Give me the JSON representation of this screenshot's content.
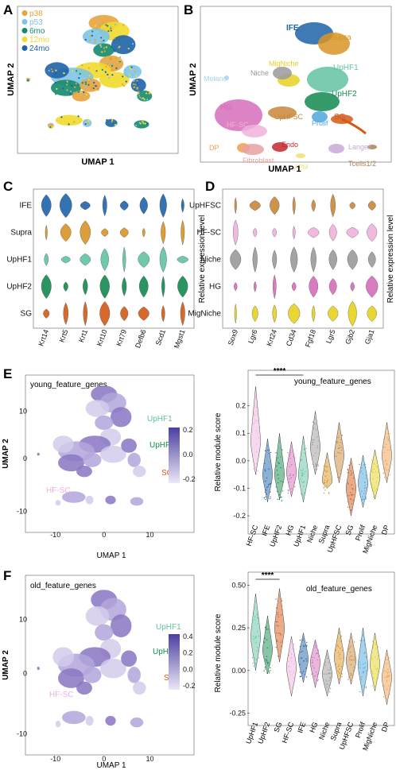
{
  "panels": {
    "a": {
      "letter": "A",
      "legend": [
        "p38",
        "p53",
        "6mo",
        "12mo",
        "24mo"
      ],
      "legend_colors": [
        "#e8a33a",
        "#7ec4e6",
        "#148a6e",
        "#f2da2e",
        "#1e63a8"
      ],
      "xlabel": "UMAP 1",
      "ylabel": "UMAP 2"
    },
    "b": {
      "letter": "B",
      "xlabel": "UMAP 1",
      "ylabel": "UMAP 2",
      "clusters": [
        {
          "label": "IFE",
          "color": "#1e63a8"
        },
        {
          "label": "Supra",
          "color": "#d89424"
        },
        {
          "label": "MigNiche",
          "color": "#e6d21f"
        },
        {
          "label": "UpHF1",
          "color": "#61c3a2"
        },
        {
          "label": "Niche",
          "color": "#9a9a9a"
        },
        {
          "label": "Melano",
          "color": "#a7d2ef"
        },
        {
          "label": "UpHF2",
          "color": "#138a50"
        },
        {
          "label": "HG",
          "color": "#d66dbb"
        },
        {
          "label": "UpHFSC",
          "color": "#c8873a"
        },
        {
          "label": "SG",
          "color": "#d25a16"
        },
        {
          "label": "HF-SC",
          "color": "#f0b1dc"
        },
        {
          "label": "Prolif",
          "color": "#4fa6dc"
        },
        {
          "label": "DP",
          "color": "#efa050"
        },
        {
          "label": "Endo",
          "color": "#c2272d"
        },
        {
          "label": "Langer",
          "color": "#c9a8d8"
        },
        {
          "label": "Fibroblast",
          "color": "#e7a1a0"
        },
        {
          "label": "APM",
          "color": "#f0e070"
        },
        {
          "label": "Tcells1/2",
          "color": "#a88458"
        }
      ]
    },
    "c": {
      "letter": "C",
      "rows": [
        "IFE",
        "Supra",
        "UpHF1",
        "UpHF2",
        "SG"
      ],
      "row_colors": [
        "#1e63a8",
        "#d89424",
        "#61c3a2",
        "#138a50",
        "#d25a16"
      ],
      "genes": [
        "Krt14",
        "Krt5",
        "Krt1",
        "Krt10",
        "Krt79",
        "Defb6",
        "Scd1",
        "Mgst1"
      ],
      "side_label": "Relative expression level"
    },
    "d": {
      "letter": "D",
      "rows": [
        "UpHFSC",
        "HF-SC",
        "Niche",
        "HG",
        "MigNiche"
      ],
      "row_colors": [
        "#c8873a",
        "#f0b1dc",
        "#9a9a9a",
        "#d66dbb",
        "#e6d21f"
      ],
      "genes": [
        "Sox9",
        "Lgr6",
        "Krt24",
        "Cd34",
        "Fgf18",
        "Lgr5",
        "Gjb2",
        "Gja1"
      ],
      "side_label": "Relative expression level"
    },
    "e": {
      "letter": "E",
      "title": "young_feature_genes",
      "umap_labels": [
        "UpHF1",
        "UpHF2",
        "SG",
        "HF-SC"
      ],
      "colorbar_ticks": [
        "0.2",
        "0.0",
        "-0.2"
      ],
      "x_ticks": [
        "-10",
        "0",
        "10"
      ],
      "y_ticks": [
        "10",
        "0",
        "-10"
      ],
      "xlabel": "UMAP 1",
      "ylabel": "UMAP 2",
      "violin_title": "young_feature_genes",
      "violin_ylabel": "Relative module score",
      "violin_yticks": [
        "0.2",
        "0.1",
        "0.0",
        "-0.1",
        "-0.2"
      ],
      "significance": "****",
      "violin_categories": [
        "HF-SC",
        "IFE",
        "UpHF2",
        "HG",
        "UpHF1",
        "Niche",
        "Supra",
        "UpHFSC",
        "SG",
        "Prolif",
        "MigNiche",
        "DP"
      ]
    },
    "f": {
      "letter": "F",
      "title": "old_feature_genes",
      "umap_labels": [
        "UpHF1",
        "UpHF2",
        "SG",
        "HF-SC"
      ],
      "colorbar_ticks": [
        "0.4",
        "0.2",
        "0.0",
        "-0.2"
      ],
      "x_ticks": [
        "-10",
        "0",
        "10"
      ],
      "y_ticks": [
        "10",
        "0",
        "-10"
      ],
      "xlabel": "UMAP 1",
      "ylabel": "UMAP 2",
      "violin_title": "old_feature_genes",
      "violin_ylabel": "Relative module score",
      "violin_yticks": [
        "0.50",
        "0.25",
        "0.00",
        "-0.25"
      ],
      "significance": "****",
      "violin_categories": [
        "UpHF1",
        "UpHF2",
        "SG",
        "HF-SC",
        "IFE",
        "HG",
        "Niche",
        "Supra",
        "UpHFSC",
        "Prolif",
        "MigNiche",
        "DP"
      ]
    }
  },
  "chart_data": [
    {
      "type": "violin",
      "title": "young_feature_genes",
      "ylabel": "Relative module score",
      "ylim": [
        -0.22,
        0.3
      ],
      "categories": [
        "HF-SC",
        "IFE",
        "UpHF2",
        "HG",
        "UpHF1",
        "Niche",
        "Supra",
        "UpHFSC",
        "SG",
        "Prolif",
        "MigNiche",
        "DP"
      ],
      "colors": [
        "#f0b1dc",
        "#1e63a8",
        "#138a50",
        "#d66dbb",
        "#61c3a2",
        "#9a9a9a",
        "#d89424",
        "#c8873a",
        "#d25a16",
        "#4fa6dc",
        "#e6d21f",
        "#efa050"
      ],
      "medians": [
        0.07,
        -0.05,
        -0.05,
        -0.04,
        -0.05,
        0.05,
        -0.07,
        0.02,
        -0.1,
        -0.08,
        -0.06,
        0.02
      ],
      "mins": [
        -0.05,
        -0.15,
        -0.14,
        -0.13,
        -0.15,
        -0.05,
        -0.1,
        -0.08,
        -0.2,
        -0.17,
        -0.14,
        -0.08
      ],
      "maxs": [
        0.27,
        0.08,
        0.1,
        0.07,
        0.09,
        0.18,
        0.03,
        0.14,
        0.01,
        0.02,
        0.04,
        0.14
      ],
      "significance": {
        "groups": [
          "HF-SC",
          "UpHF1"
        ],
        "label": "****"
      }
    },
    {
      "type": "violin",
      "title": "old_feature_genes",
      "ylabel": "Relative module score",
      "ylim": [
        -0.28,
        0.52
      ],
      "categories": [
        "UpHF1",
        "UpHF2",
        "SG",
        "HF-SC",
        "IFE",
        "HG",
        "Niche",
        "Supra",
        "UpHFSC",
        "Prolif",
        "MigNiche",
        "DP"
      ],
      "colors": [
        "#61c3a2",
        "#138a50",
        "#d25a16",
        "#f0b1dc",
        "#1e63a8",
        "#d66dbb",
        "#9a9a9a",
        "#d89424",
        "#c8873a",
        "#4fa6dc",
        "#e6d21f",
        "#efa050"
      ],
      "medians": [
        0.2,
        0.12,
        0.25,
        0.02,
        0.07,
        0.05,
        -0.02,
        0.08,
        0.06,
        0.03,
        0.04,
        -0.04
      ],
      "mins": [
        0.0,
        -0.02,
        0.05,
        -0.15,
        -0.07,
        -0.1,
        -0.15,
        -0.08,
        -0.08,
        -0.15,
        -0.12,
        -0.2
      ],
      "maxs": [
        0.45,
        0.32,
        0.48,
        0.2,
        0.22,
        0.18,
        0.12,
        0.25,
        0.22,
        0.25,
        0.22,
        0.12
      ],
      "significance": {
        "groups": [
          "UpHF1",
          "SG"
        ],
        "label": "****"
      }
    }
  ]
}
